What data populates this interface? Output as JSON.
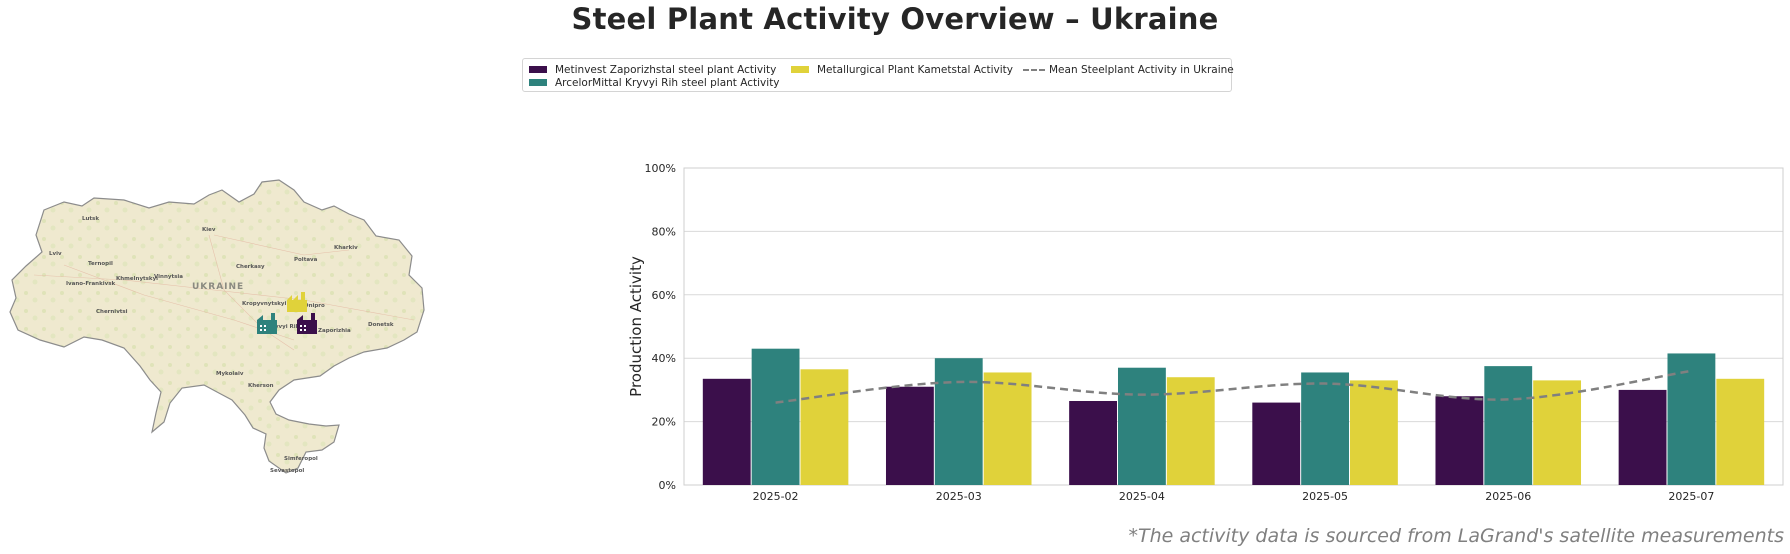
{
  "title": "Steel Plant Activity Overview – Ukraine",
  "footnote": "*The activity data is sourced from LaGrand's satellite measurements",
  "map": {
    "country_label": "UKRAINE",
    "cities": [
      "Lutsk",
      "Kiev",
      "Kharkiv",
      "Lviv",
      "Ternopil",
      "Poltava",
      "Cherkasy",
      "Vinnytsia",
      "Khmelnytskyi",
      "Ivano-Frankivsk",
      "Kropyvnytskyi",
      "Dnipro",
      "Chernivtsi",
      "Kryvyi Rih",
      "Zaporizhia",
      "Donetsk",
      "Mykolaiv",
      "Kherson",
      "Simferopol",
      "Sevastopol"
    ],
    "plant_icons": [
      "factory-icon-metinvest",
      "factory-icon-arcelormittal",
      "factory-icon-kametstal"
    ]
  },
  "chart_data": {
    "type": "bar",
    "ylabel": "Production Activity",
    "ylim": [
      0,
      100
    ],
    "ytick_labels": [
      "0%",
      "20%",
      "40%",
      "60%",
      "80%",
      "100%"
    ],
    "categories": [
      "2025-02",
      "2025-03",
      "2025-04",
      "2025-05",
      "2025-06",
      "2025-07"
    ],
    "series": [
      {
        "name": "Metinvest Zaporizhstal steel plant Activity",
        "color": "#3b0f4b",
        "values": [
          33.5,
          31,
          26.5,
          26,
          28,
          30
        ]
      },
      {
        "name": "ArcelorMittal Kryvyi Rih steel plant Activity",
        "color": "#2e827d",
        "values": [
          43,
          40,
          37,
          35.5,
          37.5,
          41.5
        ]
      },
      {
        "name": "Metallurgical Plant Kametstal Activity",
        "color": "#e0d23a",
        "values": [
          36.5,
          35.5,
          34,
          33,
          33,
          33.5
        ]
      }
    ],
    "mean_line": {
      "name": "Mean Steelplant Activity in Ukraine",
      "color": "#808080",
      "values": [
        26,
        32.5,
        28.5,
        32,
        27,
        36
      ]
    },
    "legend_position": "top-center",
    "grid": true
  }
}
